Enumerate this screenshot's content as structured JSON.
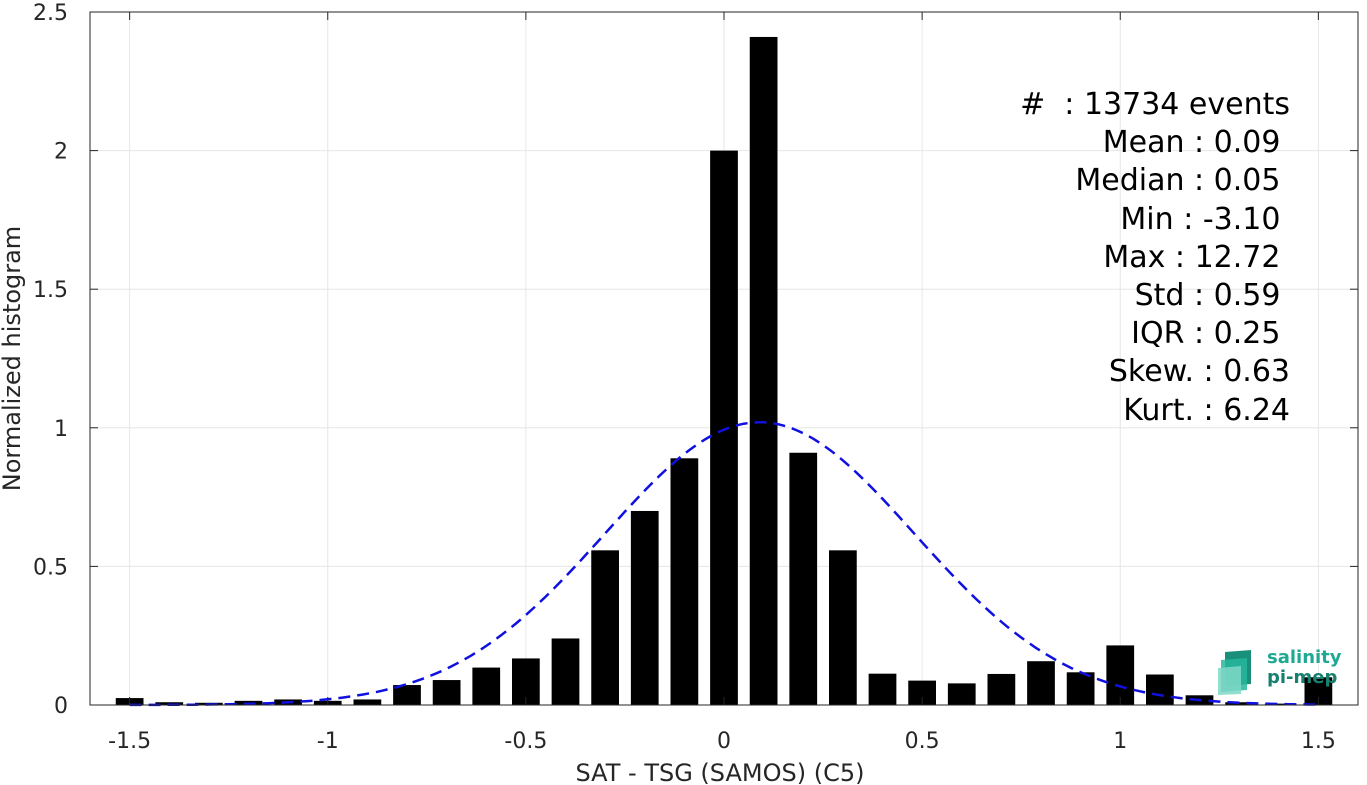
{
  "chart_data": {
    "type": "bar",
    "xlabel": "SAT - TSG (SAMOS) (C5)",
    "ylabel": "Normalized histogram",
    "xlim": [
      -1.6,
      1.6
    ],
    "ylim": [
      0,
      2.5
    ],
    "xticks": [
      -1.5,
      -1,
      -0.5,
      0,
      0.5,
      1,
      1.5
    ],
    "xtick_labels": [
      "-1.5",
      "-1",
      "-0.5",
      "0",
      "0.5",
      "1",
      "1.5"
    ],
    "yticks": [
      0,
      0.5,
      1,
      1.5,
      2,
      2.5
    ],
    "ytick_labels": [
      "0",
      "0.5",
      "1",
      "1.5",
      "2",
      "2.5"
    ],
    "grid": true,
    "bar_width": 0.07,
    "bars": {
      "x": [
        -1.5,
        -1.4,
        -1.3,
        -1.2,
        -1.1,
        -1.0,
        -0.9,
        -0.8,
        -0.7,
        -0.6,
        -0.5,
        -0.4,
        -0.3,
        -0.2,
        -0.1,
        0.0,
        0.1,
        0.2,
        0.3,
        0.4,
        0.5,
        0.6,
        0.7,
        0.8,
        0.9,
        1.0,
        1.1,
        1.2,
        1.3,
        1.4,
        1.5
      ],
      "values": [
        0.025,
        0.01,
        0.008,
        0.015,
        0.02,
        0.015,
        0.02,
        0.072,
        0.09,
        0.135,
        0.168,
        0.24,
        0.558,
        0.7,
        0.89,
        2.0,
        2.41,
        0.91,
        0.558,
        0.113,
        0.088,
        0.078,
        0.112,
        0.158,
        0.118,
        0.215,
        0.11,
        0.035,
        0.01,
        0.005,
        0.1
      ],
      "color": "#000000"
    },
    "fit_curve": {
      "style": "dashed",
      "color": "#1010e0",
      "mean": 0.09,
      "std": 0.39,
      "peak": 1.02
    },
    "annotations": [
      "#  : 13734 events",
      "Mean : 0.09 ",
      "Median : 0.05 ",
      "Min : -3.10 ",
      "Max : 12.72 ",
      "Std : 0.59 ",
      "IQR : 0.25 ",
      "Skew. : 0.63",
      "Kurt. : 6.24"
    ]
  },
  "logo": {
    "line1": "salinity",
    "line2": "pi-mep"
  }
}
